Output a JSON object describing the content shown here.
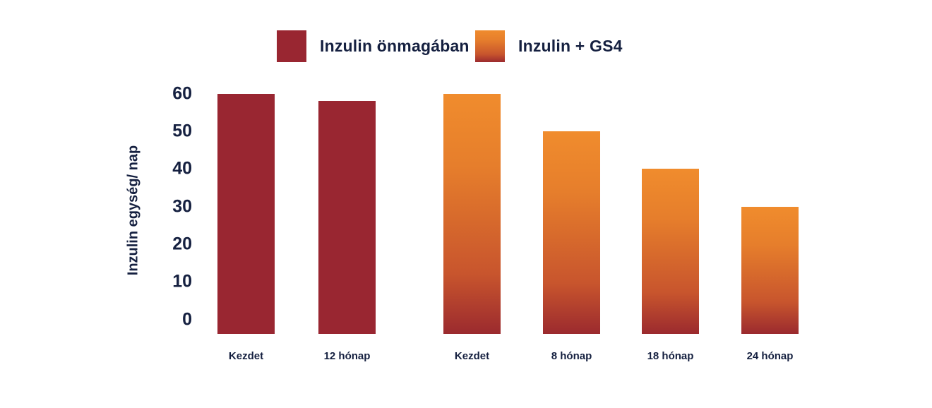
{
  "colors": {
    "text": "#152040",
    "background": "#FFFFFF",
    "series_red": "#992631",
    "series_orange_top": "#F08C2D",
    "series_orange_bottom": "#9B2A2E"
  },
  "legend": {
    "items": [
      {
        "label": "Inzulin önmagában",
        "fill": {
          "type": "solid",
          "color": "#992631"
        }
      },
      {
        "label": "Inzulin + GS4",
        "fill": {
          "type": "gradient",
          "stops": [
            "#F08C2D",
            "#E67E2C",
            "#C8552D",
            "#9B2A2E"
          ]
        }
      }
    ]
  },
  "chart_data": {
    "type": "bar",
    "title": "",
    "xlabel": "",
    "ylabel": "Inzulin egység/ nap",
    "ylim": [
      0,
      60
    ],
    "yticks": [
      0,
      10,
      20,
      30,
      40,
      50,
      60
    ],
    "grid": false,
    "legend_position": "top",
    "series": [
      {
        "name": "Inzulin önmagában",
        "categories": [
          "Kezdet",
          "12 hónap"
        ],
        "values": [
          60,
          58
        ],
        "fill": {
          "type": "solid",
          "color": "#992631"
        }
      },
      {
        "name": "Inzulin + GS4",
        "categories": [
          "Kezdet",
          "8 hónap",
          "18 hónap",
          "24 hónap"
        ],
        "values": [
          60,
          50,
          40,
          30
        ],
        "fill": {
          "type": "gradient",
          "stops": [
            "#F08C2D",
            "#E67E2C",
            "#C8552D",
            "#9B2A2E"
          ]
        }
      }
    ]
  }
}
